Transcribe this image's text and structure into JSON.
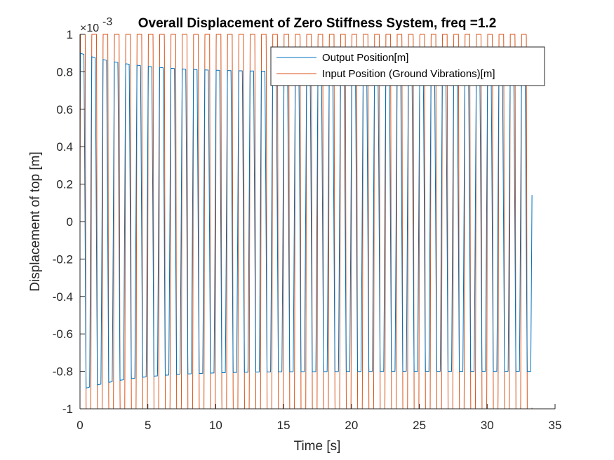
{
  "chart_data": {
    "type": "line",
    "title": "Overall Displacement of Zero Stiffness System, freq =1.2",
    "xlabel": "Time [s]",
    "ylabel": "Displacement of top [m]",
    "y_exponent_base": "×10",
    "y_exponent": "-3",
    "xlim": [
      0,
      35
    ],
    "ylim": [
      -1,
      1
    ],
    "x_ticks": [
      0,
      5,
      10,
      15,
      20,
      25,
      30,
      35
    ],
    "x_tick_labels": [
      "0",
      "5",
      "10",
      "15",
      "20",
      "25",
      "30",
      "35"
    ],
    "y_ticks": [
      -1,
      -0.8,
      -0.6,
      -0.4,
      -0.2,
      0,
      0.2,
      0.4,
      0.6,
      0.8,
      1
    ],
    "y_tick_labels": [
      "-1",
      "-0.8",
      "-0.6",
      "-0.4",
      "-0.2",
      "0",
      "0.2",
      "0.4",
      "0.6",
      "0.8",
      "1"
    ],
    "grid": false,
    "legend_position": "top-right",
    "x_end": 33.3,
    "series": [
      {
        "name": "Output Position[m]",
        "color": "#0072BD",
        "amplitude": 0.8,
        "frequency_hz": 1.2,
        "phase": 0.35,
        "transient_amplitude": [
          0.9,
          0.65
        ],
        "transient_decay_s": 4
      },
      {
        "name": "Input Position (Ground Vibrations)[m]",
        "color": "#D95319",
        "amplitude": 1.0,
        "frequency_hz": 1.2,
        "phase": 0.0
      }
    ]
  }
}
